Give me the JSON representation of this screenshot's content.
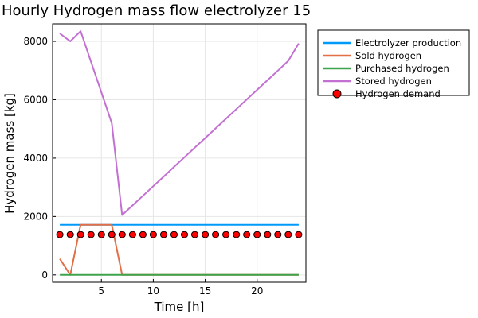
{
  "chart_data": {
    "type": "line",
    "title": "Hourly Hydrogen mass flow electrolyzer 15",
    "xlabel": "Time [h]",
    "ylabel": "Hydrogen mass [kg]",
    "xlim": [
      0.3,
      24.7
    ],
    "ylim": [
      -250,
      8600
    ],
    "xticks": [
      5,
      10,
      15,
      20
    ],
    "yticks": [
      0,
      2000,
      4000,
      6000,
      8000
    ],
    "grid": true,
    "legend_position": "top-right-outside",
    "x": [
      1,
      2,
      3,
      4,
      5,
      6,
      7,
      8,
      9,
      10,
      11,
      12,
      13,
      14,
      15,
      16,
      17,
      18,
      19,
      20,
      21,
      22,
      23,
      24
    ],
    "series": [
      {
        "name": "Electrolyzer production",
        "kind": "line",
        "color": "#009af9",
        "values": [
          1720,
          1720,
          1720,
          1720,
          1720,
          1720,
          1720,
          1720,
          1720,
          1720,
          1720,
          1720,
          1720,
          1720,
          1720,
          1720,
          1720,
          1720,
          1720,
          1720,
          1720,
          1720,
          1720,
          1720
        ]
      },
      {
        "name": "Sold hydrogen",
        "kind": "line",
        "color": "#e26f46",
        "values": [
          550,
          0,
          1720,
          1720,
          1720,
          1720,
          0,
          0,
          0,
          0,
          0,
          0,
          0,
          0,
          0,
          0,
          0,
          0,
          0,
          0,
          0,
          0,
          0,
          0
        ]
      },
      {
        "name": "Purchased hydrogen",
        "kind": "line",
        "color": "#3da44d",
        "values": [
          0,
          0,
          0,
          0,
          0,
          0,
          0,
          0,
          0,
          0,
          0,
          0,
          0,
          0,
          0,
          0,
          0,
          0,
          0,
          0,
          0,
          0,
          0,
          0
        ]
      },
      {
        "name": "Stored hydrogen",
        "kind": "line",
        "color": "#c271d2",
        "values": [
          8270,
          8000,
          8350,
          7300,
          6250,
          5200,
          2050,
          2380,
          2710,
          3040,
          3370,
          3700,
          4030,
          4360,
          4690,
          5020,
          5350,
          5680,
          6010,
          6340,
          6670,
          7000,
          7330,
          7930
        ]
      },
      {
        "name": "Hydrogen demand",
        "kind": "scatter",
        "color": "#ff0000",
        "values": [
          1380,
          1380,
          1380,
          1380,
          1380,
          1380,
          1380,
          1380,
          1380,
          1380,
          1380,
          1380,
          1380,
          1380,
          1380,
          1380,
          1380,
          1380,
          1380,
          1380,
          1380,
          1380,
          1380,
          1380
        ]
      }
    ]
  }
}
